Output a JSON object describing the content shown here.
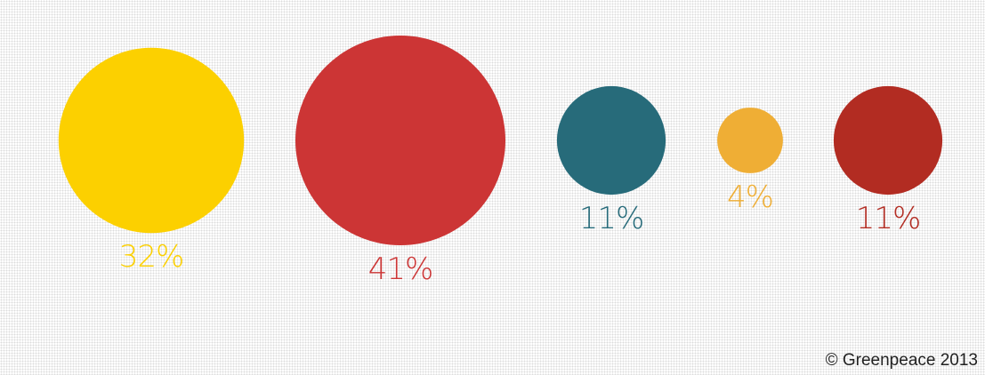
{
  "chart_data": {
    "type": "bubble",
    "title": "",
    "values": [
      32,
      41,
      11,
      4,
      11
    ],
    "labels": [
      "32%",
      "41%",
      "11%",
      "4%",
      "11%"
    ],
    "colors": [
      "#fcd000",
      "#cc3535",
      "#276b7a",
      "#efae35",
      "#b22c22"
    ],
    "legend": "none",
    "grid": false
  },
  "credit": "© Greenpeace 2013"
}
